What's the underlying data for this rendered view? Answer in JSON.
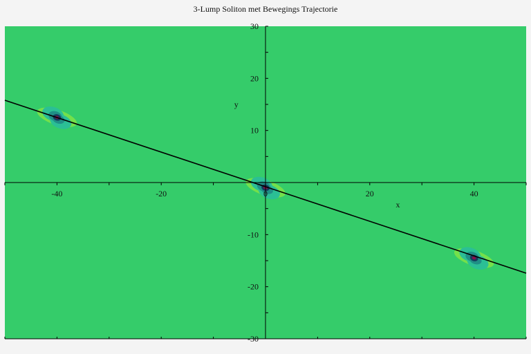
{
  "colors": {
    "background": "#35cc6a",
    "trajectory": "#000000",
    "lump_outer": "#2bbf95",
    "lump_mid": "#1f8f86",
    "lump_inner": "#163a5c",
    "lump_core": "#8a0d4a",
    "lump_ridge": "#a8f032"
  },
  "chart_data": {
    "type": "line",
    "title": "3-Lump Soliton met Bewegings Trajectorie",
    "xlabel": "x",
    "ylabel": "y",
    "xlim": [
      -50,
      50
    ],
    "ylim": [
      -30,
      30
    ],
    "x_ticks": [
      -40,
      -20,
      0,
      20,
      40
    ],
    "y_ticks": [
      -30,
      -20,
      -10,
      10,
      20,
      30
    ],
    "trajectory": {
      "x": [
        -50,
        50
      ],
      "y": [
        15.8,
        -17.4
      ]
    },
    "lumps": [
      {
        "x": -40,
        "y": 12.5
      },
      {
        "x": 0,
        "y": -1
      },
      {
        "x": 40,
        "y": -14.5
      }
    ],
    "background": "filled contour"
  }
}
